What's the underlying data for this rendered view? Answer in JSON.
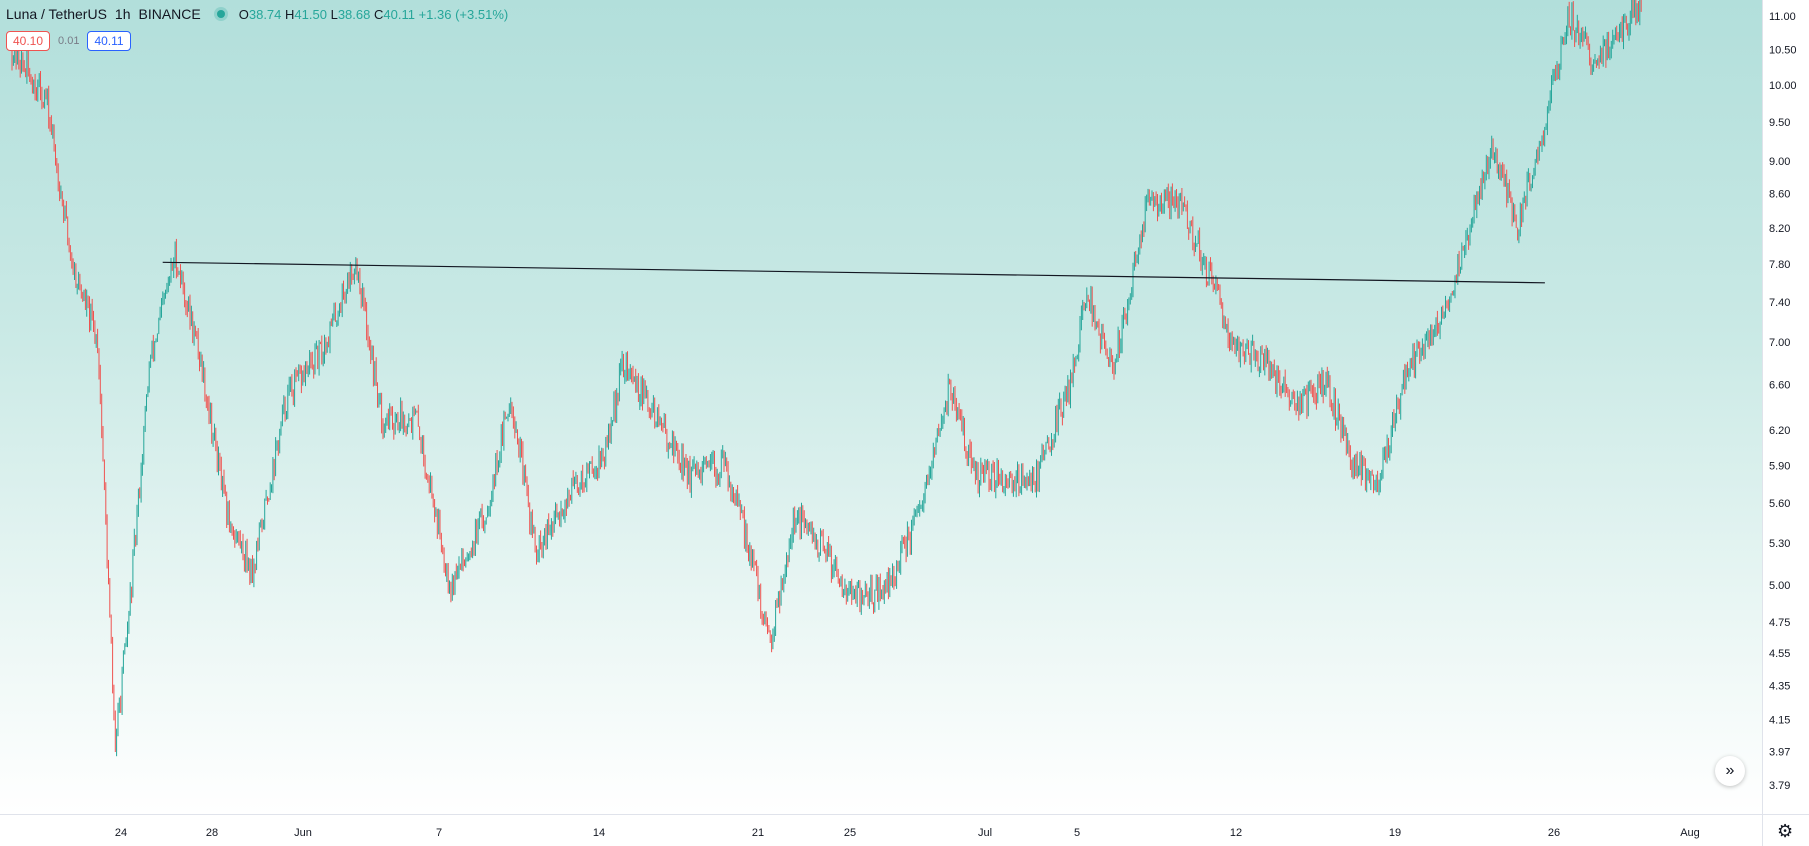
{
  "header": {
    "symbol": "Luna / TetherUS",
    "interval": "1h",
    "exchange": "BINANCE",
    "ohlc": {
      "o_label": "O",
      "o": "38.74",
      "h_label": "H",
      "h": "41.50",
      "l_label": "L",
      "l": "38.68",
      "c_label": "C",
      "c": "40.11",
      "change": "+1.36 (+3.51%)"
    }
  },
  "bidask": {
    "sell": "40.10",
    "spread": "0.01",
    "buy": "40.11"
  },
  "colors": {
    "up": "#26a69a",
    "down": "#ef5350",
    "trendline": "#131722"
  },
  "icons": {
    "scroll": "double-chevron-right-icon",
    "settings": "gear-icon"
  },
  "chart_data": {
    "type": "candlestick",
    "scale": "log",
    "ylim": [
      3.69,
      11.4
    ],
    "y_ticks": [
      "11.00",
      "10.50",
      "10.00",
      "9.50",
      "9.00",
      "8.60",
      "8.20",
      "7.80",
      "7.40",
      "7.00",
      "6.60",
      "6.20",
      "5.90",
      "5.60",
      "5.30",
      "5.00",
      "4.75",
      "4.55",
      "4.35",
      "4.15",
      "3.97",
      "3.79"
    ],
    "x_ticks": [
      "24",
      "28",
      "Jun",
      "7",
      "14",
      "21",
      "25",
      "Jul",
      "5",
      "12",
      "19",
      "26",
      "Aug"
    ],
    "price_path": [
      [
        0,
        10.5
      ],
      [
        0.02,
        9.8
      ],
      [
        0.035,
        7.8
      ],
      [
        0.05,
        7.0
      ],
      [
        0.06,
        4.0
      ],
      [
        0.068,
        4.8
      ],
      [
        0.08,
        6.8
      ],
      [
        0.095,
        7.9
      ],
      [
        0.11,
        6.8
      ],
      [
        0.125,
        5.5
      ],
      [
        0.14,
        5.1
      ],
      [
        0.16,
        6.5
      ],
      [
        0.18,
        6.9
      ],
      [
        0.2,
        7.85
      ],
      [
        0.215,
        6.3
      ],
      [
        0.235,
        6.3
      ],
      [
        0.255,
        5.0
      ],
      [
        0.275,
        5.5
      ],
      [
        0.29,
        6.5
      ],
      [
        0.305,
        5.2
      ],
      [
        0.325,
        5.7
      ],
      [
        0.345,
        6.0
      ],
      [
        0.355,
        6.8
      ],
      [
        0.375,
        6.3
      ],
      [
        0.395,
        5.8
      ],
      [
        0.415,
        5.9
      ],
      [
        0.43,
        5.2
      ],
      [
        0.44,
        4.6
      ],
      [
        0.455,
        5.5
      ],
      [
        0.475,
        5.2
      ],
      [
        0.49,
        4.9
      ],
      [
        0.51,
        5.0
      ],
      [
        0.53,
        5.6
      ],
      [
        0.545,
        6.6
      ],
      [
        0.56,
        5.8
      ],
      [
        0.575,
        5.8
      ],
      [
        0.595,
        5.8
      ],
      [
        0.615,
        6.6
      ],
      [
        0.625,
        7.5
      ],
      [
        0.64,
        6.7
      ],
      [
        0.66,
        8.5
      ],
      [
        0.68,
        8.5
      ],
      [
        0.695,
        7.7
      ],
      [
        0.71,
        7.0
      ],
      [
        0.73,
        6.8
      ],
      [
        0.745,
        6.4
      ],
      [
        0.765,
        6.6
      ],
      [
        0.78,
        5.9
      ],
      [
        0.795,
        5.8
      ],
      [
        0.81,
        6.7
      ],
      [
        0.83,
        7.2
      ],
      [
        0.845,
        8.0
      ],
      [
        0.86,
        9.2
      ],
      [
        0.875,
        8.2
      ],
      [
        0.89,
        9.4
      ],
      [
        0.905,
        11.0
      ],
      [
        0.92,
        10.3
      ],
      [
        0.935,
        10.8
      ],
      [
        0.948,
        11.2
      ]
    ],
    "trendline": {
      "start": {
        "date_frac": 0.076,
        "value": 7.82
      },
      "end": {
        "date_frac": 0.854,
        "value": 7.6
      }
    }
  }
}
